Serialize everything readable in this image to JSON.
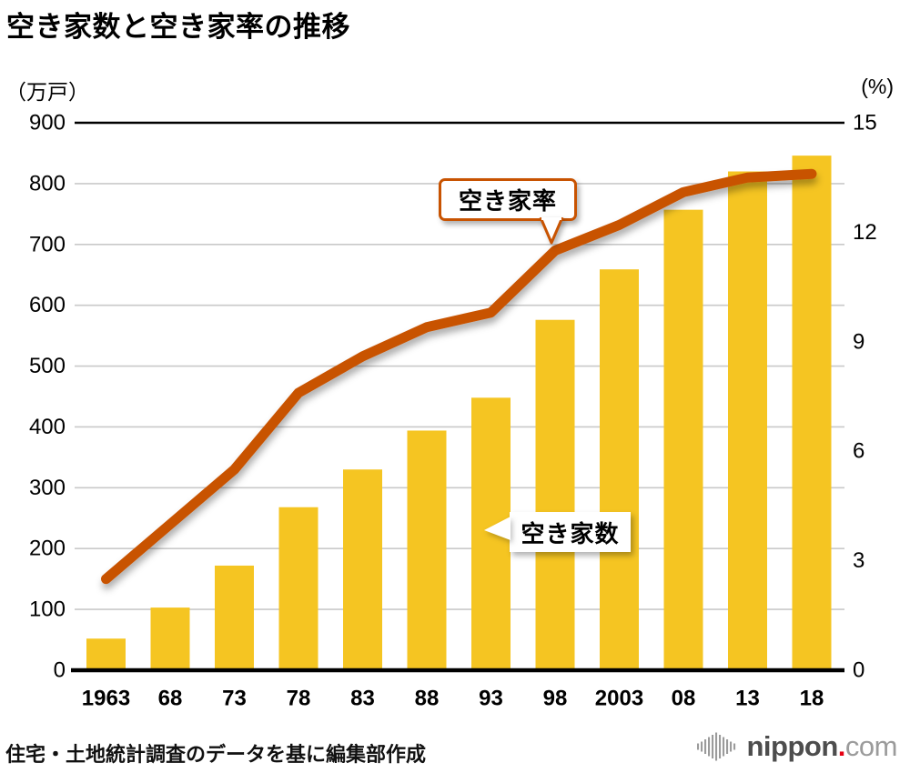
{
  "header": {
    "title": "空き家数と空き家率の推移"
  },
  "chart_data": {
    "type": "bar",
    "title": "空き家数と空き家率の推移",
    "categories": [
      "1963",
      "68",
      "73",
      "78",
      "83",
      "88",
      "93",
      "98",
      "2003",
      "08",
      "13",
      "18"
    ],
    "series": [
      {
        "name": "空き家数",
        "type": "bar",
        "axis": "left",
        "unit": "万戸",
        "values": [
          52,
          103,
          172,
          268,
          330,
          394,
          448,
          576,
          659,
          757,
          820,
          846
        ]
      },
      {
        "name": "空き家率",
        "type": "line",
        "axis": "right",
        "unit": "%",
        "values": [
          2.5,
          4.0,
          5.5,
          7.6,
          8.6,
          9.4,
          9.8,
          11.5,
          12.2,
          13.1,
          13.5,
          13.6
        ]
      }
    ],
    "left_axis": {
      "unit_label": "（万戸）",
      "min": 0,
      "max": 900,
      "tick_step": 100
    },
    "right_axis": {
      "unit_label": "(%)",
      "min": 0,
      "max": 15,
      "tick_step": 3
    },
    "grid": true,
    "legend_position": "callouts-on-plot"
  },
  "callouts": {
    "rate_label": "空き家率",
    "count_label": "空き家数"
  },
  "footer": {
    "source": "住宅・土地統計調査のデータを基に編集部作成",
    "logo": {
      "icon": "waveform-icon",
      "name": "nippon",
      "dot": ".",
      "domain": "com"
    }
  },
  "colors": {
    "bar": "#F5C522",
    "line": "#C85301",
    "grid": "#C9C9C9",
    "axis": "#000000",
    "text": "#000000",
    "logo_dot": "#E60012",
    "logo_gray": "#9B9B9B"
  }
}
